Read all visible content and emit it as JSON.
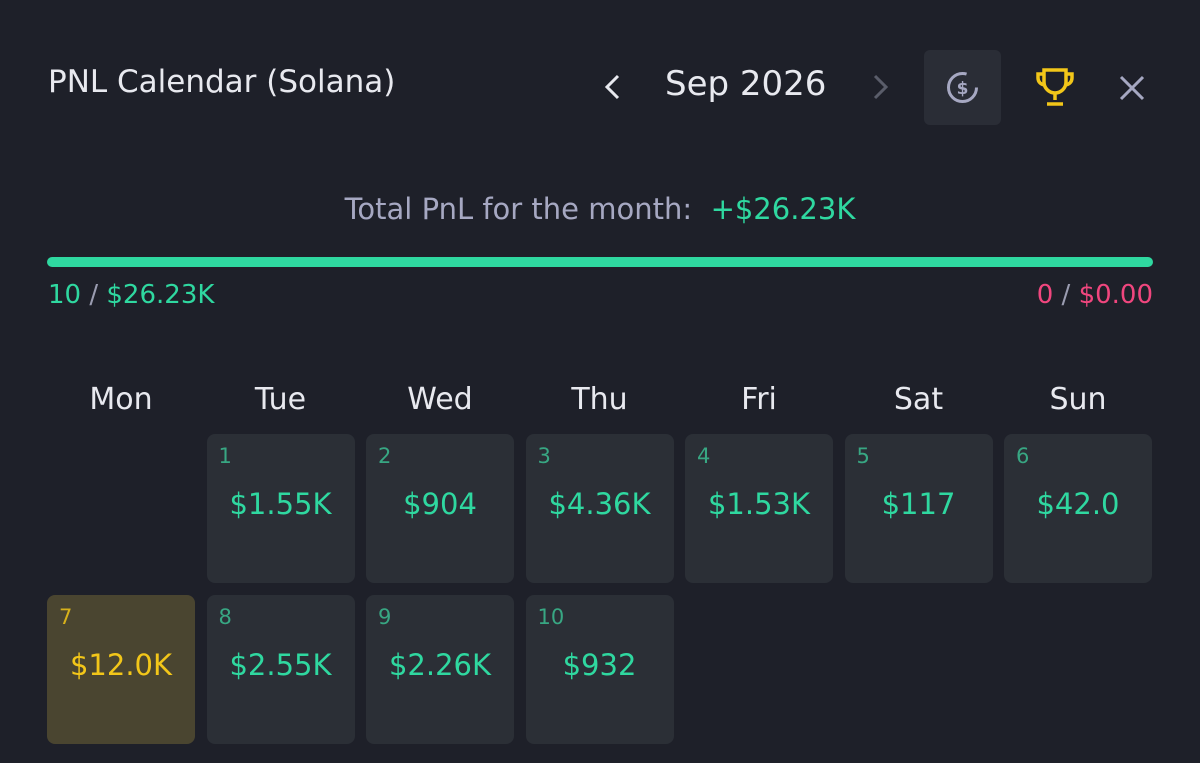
{
  "header": {
    "title": "PNL Calendar (Solana)",
    "month": "Sep 2026"
  },
  "summary": {
    "label": "Total PnL for the month:",
    "value": "+$26.23K"
  },
  "progress": {
    "separator": "/",
    "win_count": "10",
    "win_amount": "$26.23K",
    "loss_count": "0",
    "loss_amount": "$0.00"
  },
  "weekdays": [
    "Mon",
    "Tue",
    "Wed",
    "Thu",
    "Fri",
    "Sat",
    "Sun"
  ],
  "days": [
    {
      "day": "1",
      "pnl": "$1.55K"
    },
    {
      "day": "2",
      "pnl": "$904"
    },
    {
      "day": "3",
      "pnl": "$4.36K"
    },
    {
      "day": "4",
      "pnl": "$1.53K"
    },
    {
      "day": "5",
      "pnl": "$117"
    },
    {
      "day": "6",
      "pnl": "$42.0"
    },
    {
      "day": "7",
      "pnl": "$12.0K",
      "highlight": true
    },
    {
      "day": "8",
      "pnl": "$2.55K"
    },
    {
      "day": "9",
      "pnl": "$2.26K"
    },
    {
      "day": "10",
      "pnl": "$932"
    }
  ]
}
